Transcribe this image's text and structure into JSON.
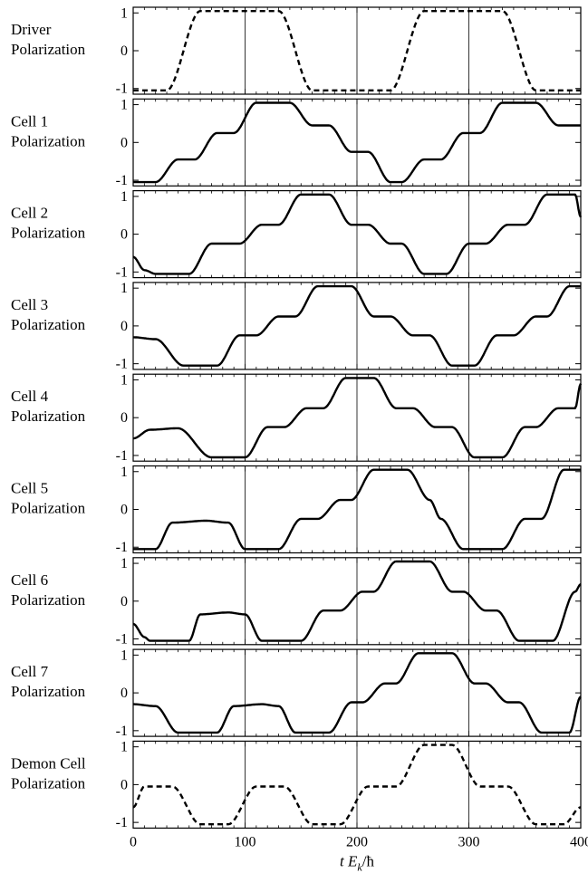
{
  "chart_data": {
    "type": "line",
    "x_axis": {
      "label_parts": [
        "t",
        "E",
        "k",
        "/ħ"
      ],
      "min": 0,
      "max": 400,
      "tick_labels": [
        "0",
        "100",
        "200",
        "300",
        "400"
      ],
      "vertical_gridlines": [
        100,
        200,
        300
      ]
    },
    "y_axis": {
      "min": -1.15,
      "max": 1.15,
      "tick_labels": [
        "1",
        "0",
        "-1"
      ]
    },
    "panels": [
      {
        "label_lines": [
          "Driver",
          "Polarization"
        ],
        "style": "dashed",
        "levels": [
          [
            0,
            -1.05
          ],
          [
            30,
            -1.05
          ],
          [
            60,
            1.05
          ],
          [
            130,
            1.05
          ],
          [
            160,
            -1.05
          ],
          [
            230,
            -1.05
          ],
          [
            260,
            1.05
          ],
          [
            330,
            1.05
          ],
          [
            360,
            -1.05
          ],
          [
            400,
            -1.05
          ]
        ]
      },
      {
        "label_lines": [
          "Cell 1",
          "Polarization"
        ],
        "style": "solid",
        "levels": [
          [
            0,
            -1.05
          ],
          [
            20,
            -1.05
          ],
          [
            40,
            -0.45
          ],
          [
            55,
            -0.45
          ],
          [
            75,
            0.25
          ],
          [
            90,
            0.25
          ],
          [
            110,
            1.05
          ],
          [
            140,
            1.05
          ],
          [
            160,
            0.45
          ],
          [
            175,
            0.45
          ],
          [
            195,
            -0.25
          ],
          [
            210,
            -0.25
          ],
          [
            230,
            -1.05
          ],
          [
            240,
            -1.05
          ],
          [
            260,
            -0.45
          ],
          [
            275,
            -0.45
          ],
          [
            295,
            0.25
          ],
          [
            310,
            0.25
          ],
          [
            330,
            1.05
          ],
          [
            360,
            1.05
          ],
          [
            380,
            0.45
          ],
          [
            400,
            0.45
          ]
        ]
      },
      {
        "label_lines": [
          "Cell 2",
          "Polarization"
        ],
        "style": "solid",
        "levels": [
          [
            0,
            -0.6
          ],
          [
            10,
            -0.95
          ],
          [
            20,
            -1.05
          ],
          [
            50,
            -1.05
          ],
          [
            70,
            -0.25
          ],
          [
            95,
            -0.25
          ],
          [
            115,
            0.25
          ],
          [
            130,
            0.25
          ],
          [
            150,
            1.05
          ],
          [
            175,
            1.05
          ],
          [
            195,
            0.25
          ],
          [
            210,
            0.25
          ],
          [
            230,
            -0.25
          ],
          [
            240,
            -0.25
          ],
          [
            260,
            -1.05
          ],
          [
            280,
            -1.05
          ],
          [
            300,
            -0.25
          ],
          [
            315,
            -0.25
          ],
          [
            335,
            0.25
          ],
          [
            350,
            0.25
          ],
          [
            370,
            1.05
          ],
          [
            395,
            1.05
          ],
          [
            400,
            0.45
          ]
        ]
      },
      {
        "label_lines": [
          "Cell 3",
          "Polarization"
        ],
        "style": "solid",
        "levels": [
          [
            0,
            -0.3
          ],
          [
            20,
            -0.35
          ],
          [
            45,
            -1.05
          ],
          [
            75,
            -1.05
          ],
          [
            95,
            -0.25
          ],
          [
            110,
            -0.25
          ],
          [
            130,
            0.25
          ],
          [
            145,
            0.25
          ],
          [
            165,
            1.05
          ],
          [
            195,
            1.05
          ],
          [
            215,
            0.25
          ],
          [
            230,
            0.25
          ],
          [
            250,
            -0.25
          ],
          [
            265,
            -0.25
          ],
          [
            285,
            -1.05
          ],
          [
            305,
            -1.05
          ],
          [
            325,
            -0.25
          ],
          [
            340,
            -0.25
          ],
          [
            360,
            0.25
          ],
          [
            370,
            0.25
          ],
          [
            390,
            1.05
          ],
          [
            400,
            1.05
          ]
        ]
      },
      {
        "label_lines": [
          "Cell 4",
          "Polarization"
        ],
        "style": "solid",
        "levels": [
          [
            0,
            -0.55
          ],
          [
            15,
            -0.32
          ],
          [
            40,
            -0.28
          ],
          [
            70,
            -1.05
          ],
          [
            100,
            -1.05
          ],
          [
            120,
            -0.25
          ],
          [
            135,
            -0.25
          ],
          [
            155,
            0.25
          ],
          [
            170,
            0.25
          ],
          [
            190,
            1.05
          ],
          [
            215,
            1.05
          ],
          [
            235,
            0.25
          ],
          [
            250,
            0.25
          ],
          [
            270,
            -0.25
          ],
          [
            285,
            -0.25
          ],
          [
            305,
            -1.05
          ],
          [
            330,
            -1.05
          ],
          [
            350,
            -0.25
          ],
          [
            360,
            -0.25
          ],
          [
            380,
            0.25
          ],
          [
            395,
            0.25
          ],
          [
            400,
            0.9
          ]
        ]
      },
      {
        "label_lines": [
          "Cell 5",
          "Polarization"
        ],
        "style": "solid",
        "levels": [
          [
            0,
            -1.05
          ],
          [
            20,
            -1.05
          ],
          [
            35,
            -0.35
          ],
          [
            65,
            -0.3
          ],
          [
            85,
            -0.35
          ],
          [
            100,
            -1.05
          ],
          [
            130,
            -1.05
          ],
          [
            150,
            -0.25
          ],
          [
            165,
            -0.25
          ],
          [
            185,
            0.25
          ],
          [
            195,
            0.25
          ],
          [
            215,
            1.05
          ],
          [
            245,
            1.05
          ],
          [
            265,
            0.25
          ],
          [
            275,
            -0.25
          ],
          [
            295,
            -1.05
          ],
          [
            330,
            -1.05
          ],
          [
            350,
            -0.25
          ],
          [
            365,
            -0.25
          ],
          [
            385,
            1.05
          ],
          [
            400,
            1.05
          ]
        ]
      },
      {
        "label_lines": [
          "Cell 6",
          "Polarization"
        ],
        "style": "solid",
        "levels": [
          [
            0,
            -0.6
          ],
          [
            10,
            -0.95
          ],
          [
            15,
            -1.05
          ],
          [
            50,
            -1.05
          ],
          [
            60,
            -0.35
          ],
          [
            85,
            -0.3
          ],
          [
            100,
            -0.35
          ],
          [
            115,
            -1.05
          ],
          [
            150,
            -1.05
          ],
          [
            170,
            -0.25
          ],
          [
            185,
            -0.25
          ],
          [
            205,
            0.25
          ],
          [
            215,
            0.25
          ],
          [
            235,
            1.05
          ],
          [
            265,
            1.05
          ],
          [
            285,
            0.25
          ],
          [
            295,
            0.25
          ],
          [
            315,
            -0.25
          ],
          [
            325,
            -0.25
          ],
          [
            345,
            -1.05
          ],
          [
            375,
            -1.05
          ],
          [
            395,
            0.25
          ],
          [
            400,
            0.45
          ]
        ]
      },
      {
        "label_lines": [
          "Cell 7",
          "Polarization"
        ],
        "style": "solid",
        "levels": [
          [
            0,
            -0.3
          ],
          [
            20,
            -0.35
          ],
          [
            40,
            -1.05
          ],
          [
            75,
            -1.05
          ],
          [
            90,
            -0.35
          ],
          [
            115,
            -0.3
          ],
          [
            130,
            -0.35
          ],
          [
            145,
            -1.05
          ],
          [
            175,
            -1.05
          ],
          [
            195,
            -0.25
          ],
          [
            205,
            -0.25
          ],
          [
            225,
            0.25
          ],
          [
            235,
            0.25
          ],
          [
            255,
            1.05
          ],
          [
            285,
            1.05
          ],
          [
            305,
            0.25
          ],
          [
            315,
            0.25
          ],
          [
            335,
            -0.25
          ],
          [
            345,
            -0.25
          ],
          [
            365,
            -1.05
          ],
          [
            390,
            -1.05
          ],
          [
            400,
            -0.1
          ]
        ]
      },
      {
        "label_lines": [
          "Demon Cell",
          "Polarization"
        ],
        "style": "dashed",
        "levels": [
          [
            0,
            -0.6
          ],
          [
            10,
            -0.05
          ],
          [
            35,
            -0.05
          ],
          [
            60,
            -1.05
          ],
          [
            85,
            -1.05
          ],
          [
            110,
            -0.05
          ],
          [
            135,
            -0.05
          ],
          [
            160,
            -1.05
          ],
          [
            185,
            -1.05
          ],
          [
            210,
            -0.05
          ],
          [
            235,
            -0.05
          ],
          [
            260,
            1.05
          ],
          [
            285,
            1.05
          ],
          [
            310,
            -0.05
          ],
          [
            335,
            -0.05
          ],
          [
            360,
            -1.05
          ],
          [
            385,
            -1.05
          ],
          [
            400,
            -0.6
          ]
        ]
      }
    ]
  }
}
